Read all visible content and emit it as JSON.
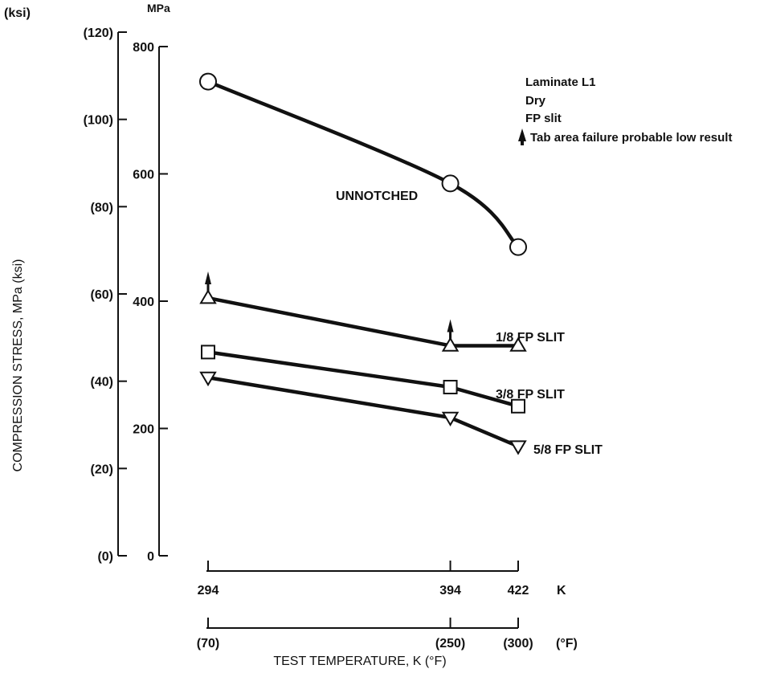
{
  "chart_data": {
    "type": "line",
    "title": "",
    "xlabel": "TEST TEMPERATURE, K (°F)",
    "ylabel": "COMPRESSION STRESS, MPa (ksi)",
    "x_unit_label": "K",
    "x_alt_unit_label": "(°F)",
    "x_ticks": [
      294,
      394,
      422
    ],
    "x_ticks_alt": [
      "(70)",
      "(250)",
      "(300)"
    ],
    "y_unit_label": "MPa",
    "y_alt_unit_label": "(ksi)",
    "y_ticks": [
      0,
      200,
      400,
      600,
      800
    ],
    "y_ticks_alt": [
      "(0)",
      "(20)",
      "(40)",
      "(60)",
      "(80)",
      "(100)",
      "(120)"
    ],
    "ksi_ticks": [
      0,
      20,
      40,
      60,
      80,
      100,
      120
    ],
    "xlim": [
      294,
      422
    ],
    "ylim": [
      0,
      800
    ],
    "grid": false,
    "legend_lines": [
      "Laminate L1",
      "Dry",
      "FP slit"
    ],
    "legend_note": "Tab area failure probable low result",
    "series": [
      {
        "label": "UNNOTCHED",
        "marker": "circle",
        "x": [
          294,
          394,
          422
        ],
        "y": [
          745,
          585,
          485
        ]
      },
      {
        "label": "1/8 FP SLIT",
        "marker": "triangle-up",
        "x": [
          294,
          394,
          422
        ],
        "y": [
          405,
          330,
          330
        ]
      },
      {
        "label": "3/8 FP SLIT",
        "marker": "square",
        "x": [
          294,
          394,
          422
        ],
        "y": [
          320,
          265,
          235
        ]
      },
      {
        "label": "5/8 FP SLIT",
        "marker": "triangle-down",
        "x": [
          294,
          394,
          422
        ],
        "y": [
          280,
          217,
          172
        ]
      }
    ],
    "tab_failure_points": [
      {
        "series": "1/8 FP SLIT",
        "x": 294
      },
      {
        "series": "1/8 FP SLIT",
        "x": 394
      }
    ]
  }
}
